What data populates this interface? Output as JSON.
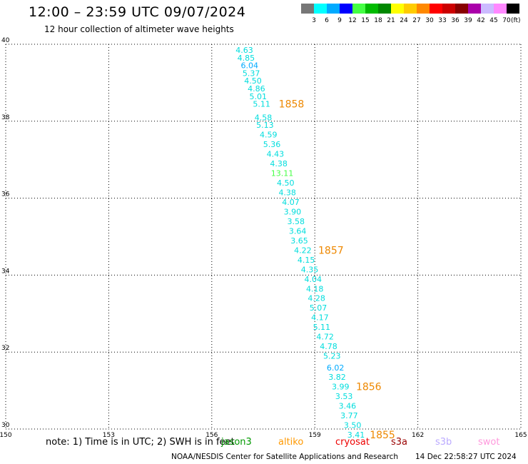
{
  "header": {
    "title": "12:00 – 23:59 UTC 09/07/2024",
    "subtitle": "12 hour collection of altimeter wave heights"
  },
  "legend": {
    "bins": [
      {
        "label": "3",
        "color": "#777777"
      },
      {
        "label": "6",
        "color": "#00ffff"
      },
      {
        "label": "9",
        "color": "#00aaff"
      },
      {
        "label": "12",
        "color": "#0000ff"
      },
      {
        "label": "15",
        "color": "#44ff44"
      },
      {
        "label": "18",
        "color": "#00bb00"
      },
      {
        "label": "21",
        "color": "#008800"
      },
      {
        "label": "24",
        "color": "#ffff00"
      },
      {
        "label": "27",
        "color": "#ffcc00"
      },
      {
        "label": "30",
        "color": "#ff8800"
      },
      {
        "label": "33",
        "color": "#ff0000"
      },
      {
        "label": "36",
        "color": "#cc0000"
      },
      {
        "label": "39",
        "color": "#880000"
      },
      {
        "label": "42",
        "color": "#aa00aa"
      },
      {
        "label": "45",
        "color": "#ccbbff"
      },
      {
        "label": "70",
        "color": "#ff88ff"
      },
      {
        "label": "",
        "color": "#000000"
      }
    ],
    "unit": "(ft)"
  },
  "chart_data": {
    "type": "scatter",
    "title": "12:00 – 23:59 UTC 09/07/2024",
    "subtitle": "12 hour collection of altimeter wave heights",
    "xlim": [
      150,
      165
    ],
    "ylim": [
      30,
      40
    ],
    "x_ticks": [
      "150",
      "153",
      "156",
      "159",
      "162",
      "165"
    ],
    "y_ticks": [
      "30",
      "32",
      "34",
      "36",
      "38",
      "40"
    ],
    "grid": true,
    "series": [
      {
        "name": "jason3",
        "color": "#00dddd",
        "points": [
          {
            "x": 156.95,
            "y": 39.85,
            "v": "4.63"
          },
          {
            "x": 157.0,
            "y": 39.65,
            "v": "4.85"
          },
          {
            "x": 157.1,
            "y": 39.45,
            "v": "6.04",
            "color": "#00aaff"
          },
          {
            "x": 157.15,
            "y": 39.25,
            "v": "5.37"
          },
          {
            "x": 157.2,
            "y": 39.05,
            "v": "4.50"
          },
          {
            "x": 157.3,
            "y": 38.85,
            "v": "4.86"
          },
          {
            "x": 157.35,
            "y": 38.65,
            "v": "5.01"
          },
          {
            "x": 157.45,
            "y": 38.45,
            "v": "5.11"
          },
          {
            "x": 157.5,
            "y": 38.1,
            "v": "4.58"
          },
          {
            "x": 157.55,
            "y": 37.9,
            "v": "5.13"
          },
          {
            "x": 157.65,
            "y": 37.65,
            "v": "4.59"
          },
          {
            "x": 157.75,
            "y": 37.4,
            "v": "5.36"
          },
          {
            "x": 157.85,
            "y": 37.15,
            "v": "4.43"
          },
          {
            "x": 157.95,
            "y": 36.9,
            "v": "4.38"
          },
          {
            "x": 158.05,
            "y": 36.65,
            "v": "13.11",
            "color": "#44ff44"
          },
          {
            "x": 158.15,
            "y": 36.4,
            "v": "4.50"
          },
          {
            "x": 158.2,
            "y": 36.15,
            "v": "4.38"
          },
          {
            "x": 158.3,
            "y": 35.9,
            "v": "4.07"
          },
          {
            "x": 158.35,
            "y": 35.65,
            "v": "3.90"
          },
          {
            "x": 158.45,
            "y": 35.4,
            "v": "3.58"
          },
          {
            "x": 158.5,
            "y": 35.15,
            "v": "3.64"
          },
          {
            "x": 158.55,
            "y": 34.9,
            "v": "3.65"
          },
          {
            "x": 158.65,
            "y": 34.65,
            "v": "4.22"
          },
          {
            "x": 158.75,
            "y": 34.4,
            "v": "4.15"
          },
          {
            "x": 158.85,
            "y": 34.15,
            "v": "4.35"
          },
          {
            "x": 158.95,
            "y": 33.9,
            "v": "4.04"
          },
          {
            "x": 159.0,
            "y": 33.65,
            "v": "4.18"
          },
          {
            "x": 159.05,
            "y": 33.4,
            "v": "4.28"
          },
          {
            "x": 159.1,
            "y": 33.15,
            "v": "5.07"
          },
          {
            "x": 159.15,
            "y": 32.9,
            "v": "4.17"
          },
          {
            "x": 159.2,
            "y": 32.65,
            "v": "5.11"
          },
          {
            "x": 159.3,
            "y": 32.4,
            "v": "4.72"
          },
          {
            "x": 159.4,
            "y": 32.15,
            "v": "4.78"
          },
          {
            "x": 159.5,
            "y": 31.9,
            "v": "5.23"
          },
          {
            "x": 159.6,
            "y": 31.6,
            "v": "6.02",
            "color": "#00aaff"
          },
          {
            "x": 159.65,
            "y": 31.35,
            "v": "3.82"
          },
          {
            "x": 159.75,
            "y": 31.1,
            "v": "3.99"
          },
          {
            "x": 159.85,
            "y": 30.85,
            "v": "3.53"
          },
          {
            "x": 159.95,
            "y": 30.6,
            "v": "3.46"
          },
          {
            "x": 160.0,
            "y": 30.35,
            "v": "3.77"
          },
          {
            "x": 160.1,
            "y": 30.1,
            "v": "3.50"
          },
          {
            "x": 160.2,
            "y": 29.85,
            "v": "3.41"
          }
        ]
      }
    ],
    "annotations": [
      {
        "text": "1858",
        "x": 157.95,
        "y": 38.45,
        "color": "#ee8800"
      },
      {
        "text": "1857",
        "x": 159.1,
        "y": 34.65,
        "color": "#ee8800"
      },
      {
        "text": "1856",
        "x": 160.2,
        "y": 31.1,
        "color": "#ee8800"
      },
      {
        "text": "1855",
        "x": 160.6,
        "y": 29.85,
        "color": "#ee8800"
      }
    ]
  },
  "footer": {
    "note": "note:  1) Time is in UTC; 2) SWH is in feet",
    "satellites": [
      {
        "name": "jason3",
        "color": "#009900"
      },
      {
        "name": "altiko",
        "color": "#ff9900"
      },
      {
        "name": "cryosat",
        "color": "#ee0000"
      },
      {
        "name": "s3a",
        "color": "#990000"
      },
      {
        "name": "s3b",
        "color": "#bbaaff"
      },
      {
        "name": "swot",
        "color": "#ff99dd"
      }
    ],
    "credit": "NOAA/NESDIS Center for Satellite Applications and Research",
    "timestamp": "14 Dec 22:58:27 UTC 2024"
  }
}
